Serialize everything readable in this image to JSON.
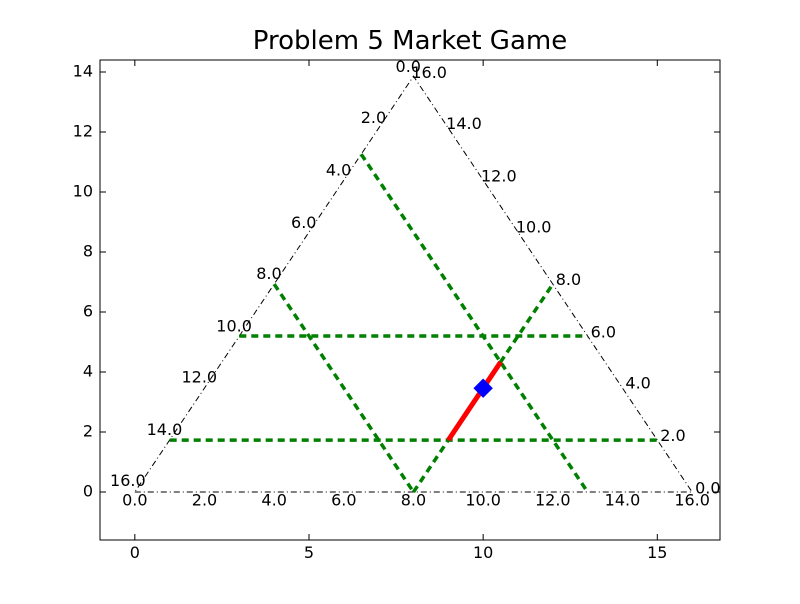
{
  "chart_data": {
    "type": "line",
    "title": "Problem 5 Market Game",
    "xlim": [
      -1,
      16.8
    ],
    "ylim": [
      -1.6,
      14.4
    ],
    "x_ticks": [
      0,
      5,
      10,
      15
    ],
    "x_tick_labels": [
      "0",
      "5",
      "10",
      "15"
    ],
    "y_ticks": [
      0,
      2,
      4,
      6,
      8,
      10,
      12,
      14
    ],
    "y_tick_labels": [
      "0",
      "2",
      "4",
      "6",
      "8",
      "10",
      "12",
      "14"
    ],
    "grid": false,
    "series": [
      {
        "role": "triangle-boundary",
        "style": "dash-dot",
        "color": "#000000",
        "points": [
          [
            0,
            0
          ],
          [
            16,
            0
          ],
          [
            8,
            13.86
          ],
          [
            0,
            0
          ]
        ]
      },
      {
        "role": "constraint",
        "style": "dashed",
        "color": "#008000",
        "points": [
          [
            1,
            1.73
          ],
          [
            15,
            1.73
          ]
        ]
      },
      {
        "role": "constraint",
        "style": "dashed",
        "color": "#008000",
        "points": [
          [
            3,
            5.2
          ],
          [
            13,
            5.2
          ]
        ]
      },
      {
        "role": "constraint",
        "style": "dashed",
        "color": "#008000",
        "points": [
          [
            4,
            6.93
          ],
          [
            8,
            0
          ]
        ]
      },
      {
        "role": "constraint",
        "style": "dashed",
        "color": "#008000",
        "points": [
          [
            6.5,
            11.26
          ],
          [
            13,
            0
          ]
        ]
      },
      {
        "role": "constraint",
        "style": "dashed",
        "color": "#008000",
        "points": [
          [
            8,
            0
          ],
          [
            12,
            6.93
          ]
        ]
      },
      {
        "role": "solution-segment",
        "style": "solid",
        "color": "#ff0000",
        "points": [
          [
            9,
            1.73
          ],
          [
            10.5,
            4.33
          ]
        ]
      },
      {
        "role": "solution-point",
        "style": "marker",
        "marker": "diamond",
        "color": "#0000ff",
        "points": [
          [
            10,
            3.46
          ]
        ]
      }
    ],
    "annotations": [
      {
        "text": "0.0",
        "x": 0,
        "y": -0.3
      },
      {
        "text": "2.0",
        "x": 2,
        "y": -0.3
      },
      {
        "text": "4.0",
        "x": 4,
        "y": -0.3
      },
      {
        "text": "6.0",
        "x": 6,
        "y": -0.3
      },
      {
        "text": "8.0",
        "x": 8,
        "y": -0.3
      },
      {
        "text": "10.0",
        "x": 10,
        "y": -0.3
      },
      {
        "text": "12.0",
        "x": 12,
        "y": -0.3
      },
      {
        "text": "14.0",
        "x": 14,
        "y": -0.3
      },
      {
        "text": "16.0",
        "x": 16,
        "y": -0.3
      },
      {
        "text": "16.0",
        "x": -0.2,
        "y": 0.35
      },
      {
        "text": "14.0",
        "x": 0.85,
        "y": 2.05
      },
      {
        "text": "12.0",
        "x": 1.85,
        "y": 3.8
      },
      {
        "text": "10.0",
        "x": 2.85,
        "y": 5.5
      },
      {
        "text": "8.0",
        "x": 3.85,
        "y": 7.25
      },
      {
        "text": "6.0",
        "x": 4.85,
        "y": 8.95
      },
      {
        "text": "4.0",
        "x": 5.85,
        "y": 10.7
      },
      {
        "text": "2.0",
        "x": 6.85,
        "y": 12.45
      },
      {
        "text": "0.0",
        "x": 7.85,
        "y": 14.15
      },
      {
        "text": "16.0",
        "x": 8.45,
        "y": 13.95
      },
      {
        "text": "14.0",
        "x": 9.45,
        "y": 12.25
      },
      {
        "text": "12.0",
        "x": 10.45,
        "y": 10.5
      },
      {
        "text": "10.0",
        "x": 11.45,
        "y": 8.8
      },
      {
        "text": "8.0",
        "x": 12.45,
        "y": 7.05
      },
      {
        "text": "6.0",
        "x": 13.45,
        "y": 5.3
      },
      {
        "text": "4.0",
        "x": 14.45,
        "y": 3.6
      },
      {
        "text": "2.0",
        "x": 15.45,
        "y": 1.85
      },
      {
        "text": "0.0",
        "x": 16.45,
        "y": 0.1
      }
    ]
  }
}
